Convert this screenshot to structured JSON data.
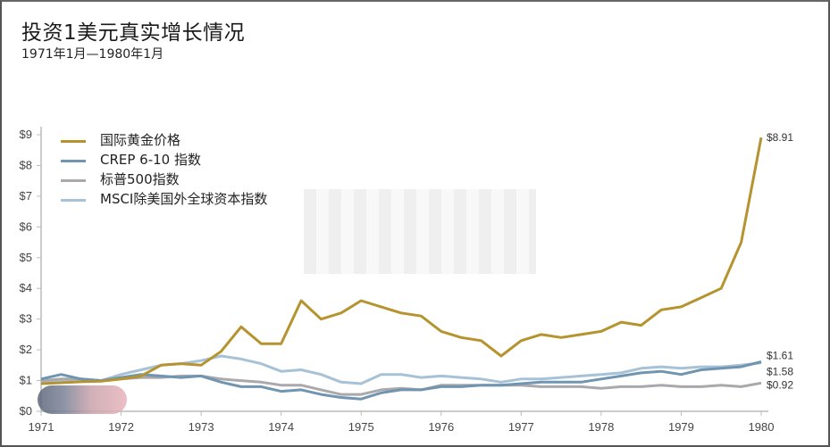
{
  "header": {
    "title": "投资1美元真实增长情况",
    "subtitle": "1971年1月—1980年1月"
  },
  "legend": [
    {
      "label": "国际黄金价格",
      "color": "#b5932f"
    },
    {
      "label": "CREP 6-10 指数",
      "color": "#6f95b0"
    },
    {
      "label": "标普500指数",
      "color": "#a9a9ad"
    },
    {
      "label": "MSCI除美国外全球资本指数",
      "color": "#a7c1d6"
    }
  ],
  "end_labels": {
    "gold": "$8.91",
    "crsp": "$1.61",
    "msci": "$1.58",
    "sp500": "$0.92"
  },
  "chart_data": {
    "type": "line",
    "title": "投资1美元真实增长情况",
    "subtitle": "1971年1月—1980年1月",
    "xlabel": "",
    "ylabel": "",
    "x_ticks": [
      "1971",
      "1972",
      "1973",
      "1974",
      "1975",
      "1976",
      "1977",
      "1978",
      "1979",
      "1980"
    ],
    "y_ticks": [
      "$0",
      "$1",
      "$2",
      "$3",
      "$4",
      "$5",
      "$6",
      "$7",
      "$8",
      "$9"
    ],
    "ylim": [
      0,
      9
    ],
    "xlim": [
      1971,
      1980
    ],
    "grid": false,
    "legend_position": "upper left",
    "x": [
      1971.0,
      1971.25,
      1971.5,
      1971.75,
      1972.0,
      1972.25,
      1972.5,
      1972.75,
      1973.0,
      1973.25,
      1973.5,
      1973.75,
      1974.0,
      1974.25,
      1974.5,
      1974.75,
      1975.0,
      1975.25,
      1975.5,
      1975.75,
      1976.0,
      1976.25,
      1976.5,
      1976.75,
      1977.0,
      1977.25,
      1977.5,
      1977.75,
      1978.0,
      1978.25,
      1978.5,
      1978.75,
      1979.0,
      1979.25,
      1979.5,
      1979.75,
      1980.0
    ],
    "series": [
      {
        "name": "国际黄金价格",
        "color": "#b5932f",
        "values": [
          0.9,
          0.93,
          0.96,
          0.98,
          1.05,
          1.15,
          1.5,
          1.55,
          1.5,
          1.95,
          2.75,
          2.2,
          2.2,
          3.6,
          3.0,
          3.2,
          3.6,
          3.4,
          3.2,
          3.1,
          2.6,
          2.4,
          2.3,
          1.8,
          2.3,
          2.5,
          2.4,
          2.5,
          2.6,
          2.9,
          2.8,
          3.3,
          3.4,
          3.7,
          4.0,
          5.5,
          8.91
        ]
      },
      {
        "name": "CREP 6-10 指数",
        "color": "#6f95b0",
        "values": [
          1.05,
          1.2,
          1.05,
          1.0,
          1.1,
          1.2,
          1.15,
          1.1,
          1.15,
          0.95,
          0.8,
          0.8,
          0.65,
          0.7,
          0.55,
          0.45,
          0.4,
          0.6,
          0.7,
          0.7,
          0.8,
          0.8,
          0.85,
          0.85,
          0.9,
          0.95,
          0.95,
          0.95,
          1.05,
          1.15,
          1.25,
          1.3,
          1.2,
          1.35,
          1.4,
          1.45,
          1.61
        ]
      },
      {
        "name": "标普500指数",
        "color": "#a9a9ad",
        "values": [
          1.0,
          1.05,
          1.05,
          1.0,
          1.05,
          1.1,
          1.1,
          1.15,
          1.15,
          1.05,
          1.0,
          0.95,
          0.85,
          0.85,
          0.7,
          0.55,
          0.55,
          0.7,
          0.75,
          0.7,
          0.85,
          0.85,
          0.85,
          0.85,
          0.85,
          0.8,
          0.8,
          0.8,
          0.75,
          0.8,
          0.8,
          0.85,
          0.8,
          0.8,
          0.85,
          0.8,
          0.92
        ]
      },
      {
        "name": "MSCI除美国外全球资本指数",
        "color": "#a7c1d6",
        "values": [
          0.95,
          1.0,
          1.05,
          1.0,
          1.2,
          1.35,
          1.5,
          1.55,
          1.65,
          1.8,
          1.7,
          1.55,
          1.3,
          1.35,
          1.2,
          0.95,
          0.9,
          1.2,
          1.2,
          1.1,
          1.15,
          1.1,
          1.05,
          0.95,
          1.05,
          1.05,
          1.1,
          1.15,
          1.2,
          1.25,
          1.4,
          1.45,
          1.4,
          1.45,
          1.45,
          1.5,
          1.58
        ]
      }
    ]
  }
}
